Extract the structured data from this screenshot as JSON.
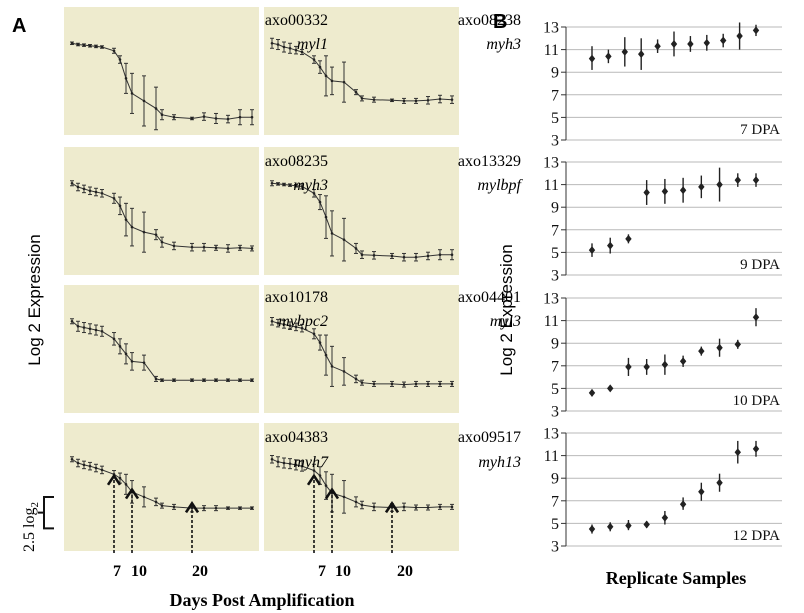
{
  "panels": {
    "a_label": "A",
    "b_label": "B"
  },
  "colors": {
    "panel_bg": "#eeebce",
    "line": "#333333",
    "marker": "#222222",
    "text": "#111111"
  },
  "panel_a": {
    "ylabel": "Log 2 Expression",
    "xlabel": "Days Post Amplification",
    "scale_bar_label": "2.5 log",
    "scale_bar_subscript": "2",
    "scale_bar_value": 2.5,
    "x_ticks": [
      "7",
      "10",
      "20"
    ],
    "arrow_days": [
      7,
      10,
      20
    ]
  },
  "panel_b": {
    "ylabel": "Log 2 Expression",
    "xlabel": "Replicate Samples"
  },
  "chart_data": [
    {
      "type": "line",
      "panel": "A",
      "x_days": [
        0,
        1,
        2,
        3,
        4,
        5,
        7,
        8,
        9,
        10,
        12,
        14,
        15,
        17,
        20,
        22,
        24,
        26,
        28,
        30
      ],
      "arrow_days": [
        7,
        10,
        20
      ],
      "series": [
        {
          "id": "axo00332",
          "gene": "myl1",
          "values": [
            13.0,
            12.9,
            12.85,
            12.8,
            12.75,
            12.7,
            12.4,
            11.7,
            10.2,
            9.0,
            8.4,
            7.8,
            7.3,
            7.1,
            7.0,
            7.15,
            7.0,
            6.95,
            7.1,
            7.1
          ],
          "errors": [
            0.1,
            0.1,
            0.1,
            0.1,
            0.1,
            0.1,
            0.2,
            0.3,
            1.2,
            1.6,
            2.0,
            1.7,
            0.4,
            0.2,
            0.1,
            0.3,
            0.4,
            0.3,
            0.6,
            0.6
          ]
        },
        {
          "id": "axo08238",
          "gene": "myh3",
          "values": [
            13.0,
            12.9,
            12.7,
            12.6,
            12.45,
            12.3,
            11.7,
            11.1,
            10.4,
            10.0,
            9.9,
            9.1,
            8.6,
            8.5,
            8.45,
            8.4,
            8.4,
            8.45,
            8.55,
            8.5
          ],
          "errors": [
            0.4,
            0.4,
            0.4,
            0.4,
            0.3,
            0.2,
            0.3,
            0.5,
            1.6,
            1.1,
            1.6,
            0.2,
            0.2,
            0.2,
            0.1,
            0.2,
            0.2,
            0.3,
            0.3,
            0.3
          ]
        },
        {
          "id": "axo08235",
          "gene": "myh3",
          "values": [
            13.0,
            12.7,
            12.55,
            12.4,
            12.3,
            12.2,
            11.8,
            11.2,
            10.1,
            9.5,
            9.1,
            8.9,
            8.3,
            8.0,
            7.9,
            7.9,
            7.85,
            7.8,
            7.85,
            7.8
          ],
          "errors": [
            0.2,
            0.3,
            0.3,
            0.3,
            0.3,
            0.3,
            0.4,
            0.7,
            1.3,
            1.5,
            1.6,
            0.4,
            0.4,
            0.3,
            0.3,
            0.3,
            0.2,
            0.3,
            0.2,
            0.2
          ]
        },
        {
          "id": "axo13329",
          "gene": "mylbpf",
          "values": [
            13.0,
            12.95,
            12.9,
            12.85,
            12.8,
            12.75,
            12.2,
            11.5,
            10.3,
            9.0,
            8.5,
            7.8,
            7.3,
            7.25,
            7.2,
            7.1,
            7.1,
            7.2,
            7.3,
            7.3
          ],
          "errors": [
            0.2,
            0.1,
            0.1,
            0.1,
            0.1,
            0.2,
            0.3,
            0.6,
            1.7,
            1.8,
            1.7,
            0.4,
            0.3,
            0.3,
            0.2,
            0.3,
            0.3,
            0.3,
            0.4,
            0.4
          ]
        },
        {
          "id": "axo10178",
          "gene": "mybpc2",
          "values": [
            13.0,
            12.6,
            12.5,
            12.4,
            12.3,
            12.2,
            11.6,
            11.0,
            10.4,
            9.8,
            9.7,
            8.4,
            8.3,
            8.3,
            8.3,
            8.3,
            8.3,
            8.3,
            8.3,
            8.3
          ],
          "errors": [
            0.2,
            0.4,
            0.4,
            0.4,
            0.4,
            0.4,
            0.5,
            0.6,
            0.8,
            0.7,
            0.6,
            0.2,
            0.1,
            0.1,
            0.1,
            0.1,
            0.1,
            0.1,
            0.1,
            0.1
          ]
        },
        {
          "id": "axo04401",
          "gene": "myl3",
          "values": [
            13.0,
            12.85,
            12.75,
            12.65,
            12.55,
            12.45,
            12.0,
            11.3,
            10.3,
            9.4,
            9.0,
            8.4,
            8.1,
            8.0,
            8.0,
            7.95,
            8.0,
            8.0,
            8.0,
            8.0
          ],
          "errors": [
            0.3,
            0.3,
            0.3,
            0.3,
            0.3,
            0.3,
            0.4,
            0.6,
            1.6,
            1.6,
            1.1,
            0.3,
            0.2,
            0.2,
            0.2,
            0.2,
            0.2,
            0.2,
            0.2,
            0.2
          ]
        },
        {
          "id": "axo04383",
          "gene": "myh7",
          "values": [
            13.0,
            12.7,
            12.55,
            12.45,
            12.3,
            12.15,
            11.8,
            11.5,
            11.0,
            10.4,
            10.0,
            9.6,
            9.3,
            9.2,
            9.1,
            9.1,
            9.1,
            9.1,
            9.1,
            9.1
          ],
          "errors": [
            0.2,
            0.3,
            0.3,
            0.3,
            0.3,
            0.3,
            0.3,
            0.4,
            0.8,
            0.9,
            0.8,
            0.3,
            0.2,
            0.2,
            0.3,
            0.2,
            0.2,
            0.1,
            0.1,
            0.1
          ]
        },
        {
          "id": "axo09517",
          "gene": "myh13",
          "values": [
            13.0,
            12.8,
            12.7,
            12.65,
            12.55,
            12.45,
            12.1,
            11.7,
            10.9,
            10.3,
            10.0,
            9.6,
            9.35,
            9.2,
            9.15,
            9.2,
            9.15,
            9.15,
            9.2,
            9.2
          ],
          "errors": [
            0.3,
            0.4,
            0.4,
            0.4,
            0.4,
            0.4,
            0.5,
            0.7,
            1.1,
            1.5,
            1.3,
            0.4,
            0.3,
            0.3,
            0.3,
            0.3,
            0.2,
            0.2,
            0.2,
            0.2
          ]
        }
      ]
    },
    {
      "type": "scatter",
      "panel": "B",
      "ylim": [
        3,
        13
      ],
      "yticks": [
        3,
        5,
        7,
        9,
        11,
        13
      ],
      "series": [
        {
          "label": "7 DPA",
          "values": [
            10.2,
            10.4,
            10.8,
            10.6,
            11.3,
            11.5,
            11.5,
            11.6,
            11.8,
            12.2,
            12.7
          ],
          "low": [
            9.2,
            9.8,
            9.5,
            9.2,
            10.7,
            10.4,
            10.8,
            10.9,
            11.2,
            11.0,
            12.2
          ],
          "high": [
            11.3,
            11.0,
            12.1,
            12.0,
            11.9,
            12.6,
            12.2,
            12.3,
            12.4,
            13.4,
            13.2
          ]
        },
        {
          "label": "9 DPA",
          "values": [
            5.2,
            5.6,
            6.2,
            10.3,
            10.4,
            10.5,
            10.8,
            11.0,
            11.4,
            11.4
          ],
          "low": [
            4.6,
            4.9,
            5.8,
            9.2,
            9.3,
            9.4,
            9.8,
            9.5,
            10.8,
            10.8
          ],
          "high": [
            5.8,
            6.3,
            6.6,
            11.4,
            11.5,
            11.6,
            11.8,
            12.5,
            12.0,
            12.0
          ]
        },
        {
          "label": "10 DPA",
          "values": [
            4.6,
            5.0,
            6.9,
            6.9,
            7.1,
            7.4,
            8.3,
            8.6,
            8.9,
            11.3
          ],
          "low": [
            4.3,
            4.8,
            6.1,
            6.2,
            6.2,
            6.9,
            7.9,
            7.8,
            8.5,
            10.5
          ],
          "high": [
            4.9,
            5.2,
            7.7,
            7.6,
            8.0,
            7.9,
            8.7,
            9.4,
            9.3,
            12.1
          ]
        },
        {
          "label": "12 DPA",
          "values": [
            4.5,
            4.7,
            4.8,
            4.9,
            5.5,
            6.7,
            7.8,
            8.6,
            11.3,
            11.6
          ],
          "low": [
            4.1,
            4.3,
            4.4,
            4.6,
            4.9,
            6.2,
            7.0,
            7.8,
            10.3,
            10.9
          ],
          "high": [
            4.9,
            5.1,
            5.3,
            5.2,
            6.1,
            7.3,
            8.6,
            9.4,
            12.3,
            12.3
          ]
        }
      ]
    }
  ]
}
